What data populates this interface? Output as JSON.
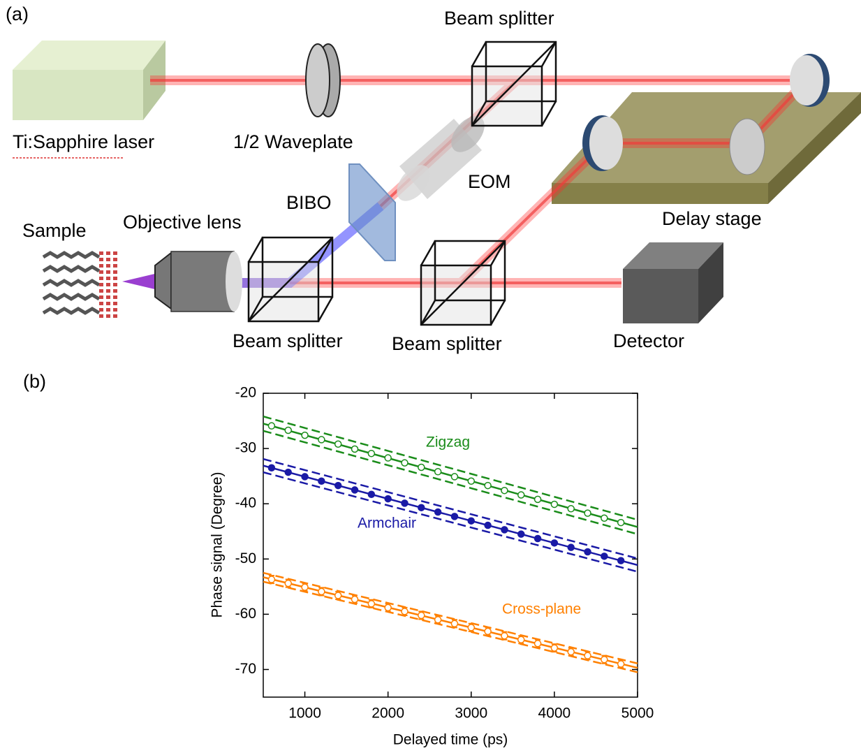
{
  "panel_a": {
    "label": "(a)",
    "laser": "Ti:Sapphire laser",
    "waveplate": "1/2 Waveplate",
    "beam_splitter_top": "Beam splitter",
    "eom": "EOM",
    "bibo": "BIBO",
    "sample": "Sample",
    "objective": "Objective lens",
    "delay_stage": "Delay stage",
    "beam_splitter_left": "Beam splitter",
    "beam_splitter_right": "Beam splitter",
    "detector": "Detector"
  },
  "panel_b": {
    "label": "(b)"
  },
  "chart_data": {
    "type": "line",
    "x_label": "Delayed time (ps)",
    "y_label": "Phase signal (Degree)",
    "xlim": [
      500,
      5000
    ],
    "ylim": [
      -75,
      -20
    ],
    "xticks": [
      1000,
      2000,
      3000,
      4000,
      5000
    ],
    "yticks": [
      -70,
      -60,
      -50,
      -40,
      -30,
      -20
    ],
    "x": [
      600,
      800,
      1000,
      1200,
      1400,
      1600,
      1800,
      2000,
      2200,
      2400,
      2600,
      2800,
      3000,
      3200,
      3400,
      3600,
      3800,
      4000,
      4200,
      4400,
      4600,
      4800
    ],
    "fit_x": [
      500,
      5000
    ],
    "series": [
      {
        "name": "Zigzag",
        "color": "#1a8c1a",
        "marker": "open",
        "values": [
          -25.9,
          -26.7,
          -27.6,
          -28.4,
          -29.2,
          -30.1,
          -30.9,
          -31.7,
          -32.6,
          -33.4,
          -34.2,
          -35.1,
          -35.9,
          -36.7,
          -37.6,
          -38.4,
          -39.2,
          -40.1,
          -40.9,
          -41.7,
          -42.6,
          -43.4
        ],
        "fit": [
          -25.5,
          -44.2
        ],
        "fit_upper": [
          -24.2,
          -42.9
        ],
        "fit_lower": [
          -26.8,
          -45.5
        ]
      },
      {
        "name": "Armchair",
        "color": "#1a1aa6",
        "marker": "filled",
        "values": [
          -33.5,
          -34.3,
          -35.1,
          -35.9,
          -36.7,
          -37.5,
          -38.3,
          -39.1,
          -39.9,
          -40.7,
          -41.5,
          -42.3,
          -43.1,
          -43.9,
          -44.7,
          -45.5,
          -46.3,
          -47.1,
          -47.9,
          -48.7,
          -49.5,
          -50.3
        ],
        "fit": [
          -33.1,
          -51.1
        ],
        "fit_upper": [
          -31.9,
          -49.9
        ],
        "fit_lower": [
          -34.3,
          -52.3
        ]
      },
      {
        "name": "Cross-plane",
        "color": "#ff8000",
        "marker": "open",
        "values": [
          -53.7,
          -54.4,
          -55.1,
          -55.9,
          -56.6,
          -57.3,
          -58.1,
          -58.8,
          -59.5,
          -60.2,
          -61.0,
          -61.7,
          -62.4,
          -63.1,
          -63.9,
          -64.6,
          -65.3,
          -66.1,
          -66.8,
          -67.5,
          -68.2,
          -69.0
        ],
        "errors": [
          0.7,
          0.7,
          0.7,
          0.7,
          0.7,
          0.7,
          0.7,
          0.7,
          0.7,
          0.7,
          0.7,
          0.7,
          0.7,
          0.7,
          0.7,
          0.7,
          0.7,
          0.7,
          0.7,
          0.7,
          0.7,
          0.7
        ],
        "fit": [
          -53.3,
          -69.7
        ],
        "fit_upper": [
          -52.5,
          -68.9
        ],
        "fit_lower": [
          -54.1,
          -70.5
        ]
      }
    ]
  }
}
